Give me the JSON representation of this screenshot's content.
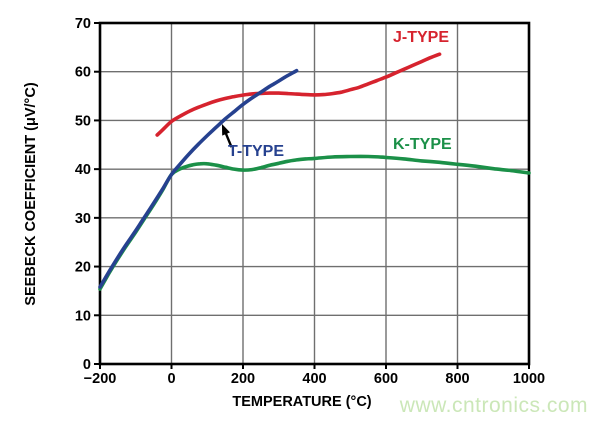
{
  "chart_data": {
    "type": "line",
    "title": "",
    "xlabel": "TEMPERATURE (°C)",
    "ylabel": "SEEBECK COEFFICIENT (μV/°C)",
    "xlim": [
      -200,
      1000
    ],
    "ylim": [
      0,
      70
    ],
    "x_ticks": [
      -200,
      0,
      200,
      400,
      600,
      800,
      1000
    ],
    "x_tick_labels": [
      "−200",
      "0",
      "200",
      "400",
      "600",
      "800",
      "1000"
    ],
    "y_ticks": [
      0,
      10,
      20,
      30,
      40,
      50,
      60,
      70
    ],
    "y_tick_labels": [
      "0",
      "10",
      "20",
      "30",
      "40",
      "50",
      "60",
      "70"
    ],
    "grid": true,
    "grid_color": "#6f6f6f",
    "axis_color": "#000000",
    "legend_position": "labels-on-plot",
    "series": [
      {
        "name": "J-TYPE",
        "color": "#d6232e",
        "points": [
          [
            -40,
            47.0
          ],
          [
            -20,
            48.4
          ],
          [
            0,
            49.8
          ],
          [
            25,
            50.9
          ],
          [
            50,
            51.9
          ],
          [
            75,
            52.7
          ],
          [
            100,
            53.4
          ],
          [
            125,
            54.0
          ],
          [
            150,
            54.5
          ],
          [
            175,
            54.9
          ],
          [
            200,
            55.2
          ],
          [
            225,
            55.45
          ],
          [
            250,
            55.55
          ],
          [
            275,
            55.6
          ],
          [
            300,
            55.6
          ],
          [
            325,
            55.5
          ],
          [
            350,
            55.4
          ],
          [
            375,
            55.3
          ],
          [
            400,
            55.25
          ],
          [
            425,
            55.3
          ],
          [
            450,
            55.5
          ],
          [
            475,
            55.8
          ],
          [
            500,
            56.3
          ],
          [
            525,
            56.8
          ],
          [
            550,
            57.5
          ],
          [
            575,
            58.2
          ],
          [
            600,
            58.9
          ],
          [
            625,
            59.7
          ],
          [
            650,
            60.5
          ],
          [
            675,
            61.3
          ],
          [
            700,
            62.1
          ],
          [
            725,
            62.9
          ],
          [
            750,
            63.6
          ]
        ]
      },
      {
        "name": "T-TYPE",
        "color": "#26418f",
        "points": [
          [
            -200,
            15.8
          ],
          [
            -175,
            18.9
          ],
          [
            -150,
            21.9
          ],
          [
            -125,
            24.7
          ],
          [
            -100,
            27.4
          ],
          [
            -75,
            30.2
          ],
          [
            -50,
            33.0
          ],
          [
            -25,
            35.9
          ],
          [
            0,
            38.9
          ],
          [
            25,
            41.1
          ],
          [
            50,
            43.2
          ],
          [
            75,
            45.1
          ],
          [
            100,
            46.9
          ],
          [
            125,
            48.6
          ],
          [
            150,
            50.3
          ],
          [
            175,
            51.8
          ],
          [
            200,
            53.3
          ],
          [
            225,
            54.6
          ],
          [
            250,
            55.8
          ],
          [
            275,
            57.0
          ],
          [
            300,
            58.1
          ],
          [
            325,
            59.2
          ],
          [
            350,
            60.2
          ]
        ]
      },
      {
        "name": "K-TYPE",
        "color": "#1b9048",
        "points": [
          [
            -200,
            15.4
          ],
          [
            -175,
            18.6
          ],
          [
            -150,
            21.6
          ],
          [
            -125,
            24.4
          ],
          [
            -100,
            27.1
          ],
          [
            -75,
            29.9
          ],
          [
            -50,
            32.7
          ],
          [
            -25,
            35.7
          ],
          [
            0,
            38.9
          ],
          [
            20,
            39.9
          ],
          [
            40,
            40.5
          ],
          [
            60,
            40.9
          ],
          [
            80,
            41.1
          ],
          [
            100,
            41.1
          ],
          [
            125,
            40.8
          ],
          [
            150,
            40.4
          ],
          [
            175,
            40.0
          ],
          [
            200,
            39.8
          ],
          [
            225,
            39.9
          ],
          [
            250,
            40.3
          ],
          [
            275,
            40.8
          ],
          [
            300,
            41.2
          ],
          [
            325,
            41.6
          ],
          [
            350,
            41.9
          ],
          [
            375,
            42.1
          ],
          [
            400,
            42.2
          ],
          [
            450,
            42.5
          ],
          [
            500,
            42.6
          ],
          [
            550,
            42.6
          ],
          [
            600,
            42.4
          ],
          [
            650,
            42.1
          ],
          [
            700,
            41.7
          ],
          [
            750,
            41.4
          ],
          [
            800,
            41.0
          ],
          [
            850,
            40.6
          ],
          [
            900,
            40.1
          ],
          [
            950,
            39.7
          ],
          [
            1000,
            39.2
          ]
        ]
      }
    ],
    "annotation": {
      "type": "arrow",
      "label": "T-TYPE",
      "from_data": [
        168,
        44.5
      ],
      "to_data": [
        141,
        49.3
      ],
      "color": "#000000"
    }
  },
  "watermark": {
    "text": "www.cntronics.com",
    "color": "#cbe7b8"
  }
}
